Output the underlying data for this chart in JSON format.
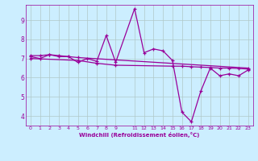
{
  "xlabel": "Windchill (Refroidissement éolien,°C)",
  "background_color": "#cceeff",
  "line_color": "#990099",
  "grid_color": "#b0c8c8",
  "xlim": [
    -0.5,
    23.5
  ],
  "ylim": [
    3.5,
    9.8
  ],
  "xticks": [
    0,
    1,
    2,
    3,
    4,
    5,
    6,
    7,
    8,
    9,
    11,
    12,
    13,
    14,
    15,
    16,
    17,
    18,
    19,
    20,
    21,
    22,
    23
  ],
  "yticks": [
    4,
    5,
    6,
    7,
    8,
    9
  ],
  "series1_x": [
    0,
    1,
    2,
    3,
    4,
    5,
    6,
    7,
    8,
    9,
    11,
    12,
    13,
    14,
    15,
    16,
    17,
    18,
    19,
    20,
    21,
    22,
    23
  ],
  "series1_y": [
    7.1,
    7.0,
    7.2,
    7.1,
    7.1,
    6.8,
    7.0,
    6.85,
    8.2,
    6.8,
    9.6,
    7.3,
    7.5,
    7.4,
    6.9,
    4.2,
    3.7,
    5.3,
    6.5,
    6.1,
    6.2,
    6.1,
    6.4
  ],
  "series2_x": [
    0,
    1,
    2,
    3,
    4,
    5,
    23
  ],
  "series2_y": [
    7.15,
    7.15,
    7.2,
    7.15,
    7.1,
    7.05,
    6.5
  ],
  "series3_x": [
    0,
    5,
    7,
    9,
    15,
    16,
    17,
    18,
    19,
    20,
    21,
    22,
    23
  ],
  "series3_y": [
    7.0,
    6.9,
    6.75,
    6.65,
    6.6,
    6.6,
    6.57,
    6.55,
    6.53,
    6.5,
    6.5,
    6.48,
    6.45
  ]
}
